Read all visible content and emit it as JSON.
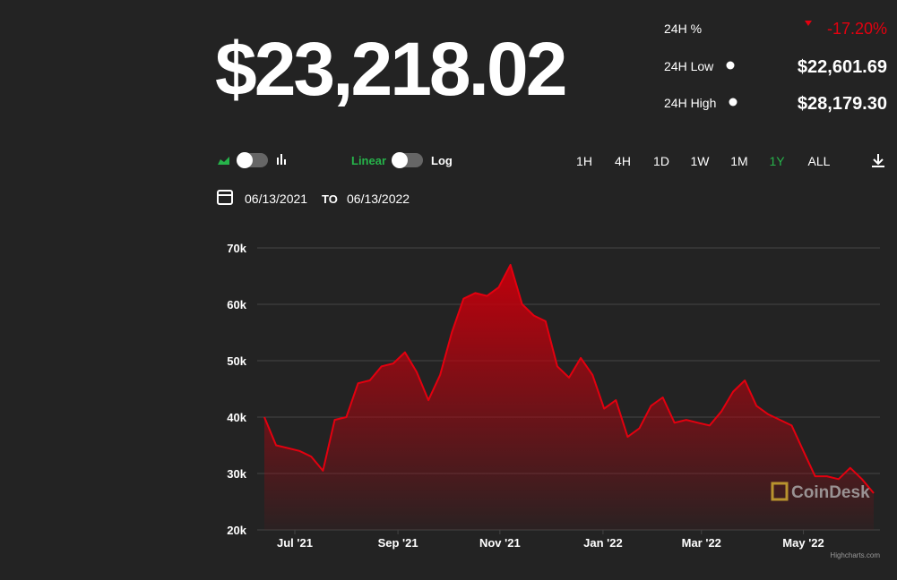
{
  "header": {
    "price": "$23,218.02",
    "change_label": "24H %",
    "change": "-17.20%",
    "low_label": "24H Low",
    "low": "$22,601.69",
    "high_label": "24H High",
    "high": "$28,179.30"
  },
  "controls": {
    "scale_linear": "Linear",
    "scale_log": "Log",
    "ranges": [
      "1H",
      "4H",
      "1D",
      "1W",
      "1M",
      "1Y",
      "ALL"
    ],
    "date_from": "06/13/2021",
    "date_sep": "TO",
    "date_to": "06/13/2022"
  },
  "chart_data": {
    "type": "area",
    "color": "#e3000f",
    "values": [
      40000,
      35000,
      34500,
      34000,
      33000,
      30500,
      39500,
      40000,
      46000,
      46500,
      49000,
      49500,
      51500,
      48000,
      43000,
      47500,
      55000,
      61000,
      62000,
      61500,
      63000,
      67000,
      60000,
      58000,
      57000,
      49000,
      47000,
      50500,
      47500,
      41500,
      43000,
      36500,
      38000,
      42000,
      43500,
      39000,
      39500,
      39000,
      38500,
      41000,
      44500,
      46500,
      42000,
      40500,
      39500,
      38500,
      34000,
      29500,
      29500,
      29000,
      31000,
      29000,
      26500
    ],
    "xlim": [
      0,
      52
    ],
    "xticks": [
      {
        "value": 2.6,
        "label": "Jul '21"
      },
      {
        "value": 11.4,
        "label": "Sep '21"
      },
      {
        "value": 20.1,
        "label": "Nov '21"
      },
      {
        "value": 28.9,
        "label": "Jan '22"
      },
      {
        "value": 37.3,
        "label": "Mar '22"
      },
      {
        "value": 46,
        "label": "May '22"
      }
    ],
    "ylim": [
      20000,
      70000
    ],
    "yticks": [
      {
        "value": 20000,
        "label": "20k"
      },
      {
        "value": 30000,
        "label": "30k"
      },
      {
        "value": 40000,
        "label": "40k"
      },
      {
        "value": 50000,
        "label": "50k"
      },
      {
        "value": 60000,
        "label": "60k"
      },
      {
        "value": 70000,
        "label": "70k"
      }
    ],
    "grid": true,
    "watermark": "CoinDesk",
    "credit": "Highcharts.com"
  }
}
